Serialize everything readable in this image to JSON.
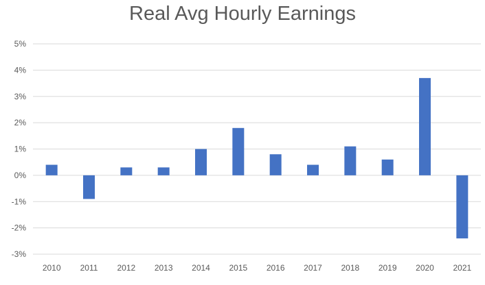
{
  "chart_data": {
    "type": "bar",
    "title": "Real Avg Hourly Earnings",
    "xlabel": "",
    "ylabel": "",
    "categories": [
      "2010",
      "2011",
      "2012",
      "2013",
      "2014",
      "2015",
      "2016",
      "2017",
      "2018",
      "2019",
      "2020",
      "2021"
    ],
    "values": [
      0.4,
      -0.9,
      0.3,
      0.3,
      1.0,
      1.8,
      0.8,
      0.4,
      1.1,
      0.6,
      3.7,
      -2.4
    ],
    "ylim": [
      -3,
      5
    ],
    "yticks": [
      "-3%",
      "-2%",
      "-1%",
      "0%",
      "1%",
      "2%",
      "3%",
      "4%",
      "5%"
    ],
    "grid": true,
    "legend": "none",
    "bar_color": "#4472C4",
    "grid_color": "#D9D9D9"
  }
}
